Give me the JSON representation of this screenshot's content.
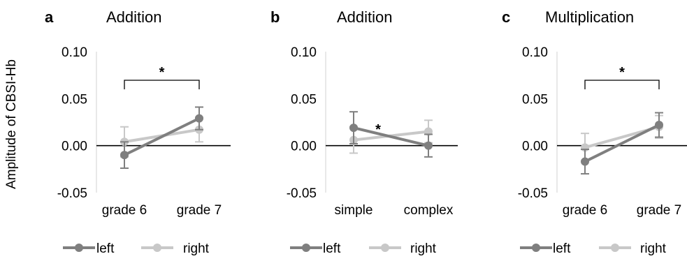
{
  "ylabel": "Amplitude of CBSI-Hb",
  "colors": {
    "left": "#7f7f7f",
    "right": "#c8c8c8",
    "axis": "#000000",
    "gridline": "#d9d9d9"
  },
  "chart_data": [
    {
      "type": "line",
      "letter": "a",
      "title": "Addition",
      "categories": [
        "grade 6",
        "grade 7"
      ],
      "ylim": [
        -0.05,
        0.1
      ],
      "yticks": [
        "0.10",
        "0.05",
        "0.00",
        "-0.05"
      ],
      "series": [
        {
          "name": "left",
          "values": [
            -0.01,
            0.029
          ],
          "errors": [
            0.014,
            0.012
          ]
        },
        {
          "name": "right",
          "values": [
            0.004,
            0.017
          ],
          "errors": [
            0.016,
            0.013
          ]
        }
      ],
      "bracket": {
        "label": "*",
        "between": [
          "grade 6",
          "grade 7"
        ]
      },
      "legend": [
        "left",
        "right"
      ]
    },
    {
      "type": "line",
      "letter": "b",
      "title": "Addition",
      "categories": [
        "simple",
        "complex"
      ],
      "ylim": [
        -0.05,
        0.1
      ],
      "yticks": [
        "0.10",
        "0.05",
        "0.00",
        "-0.05"
      ],
      "series": [
        {
          "name": "left",
          "values": [
            0.019,
            0.0
          ],
          "errors": [
            0.017,
            0.012
          ]
        },
        {
          "name": "right",
          "values": [
            0.006,
            0.015
          ],
          "errors": [
            0.014,
            0.012
          ]
        }
      ],
      "annotation": "*",
      "legend": [
        "left",
        "right"
      ]
    },
    {
      "type": "line",
      "letter": "c",
      "title": "Multiplication",
      "categories": [
        "grade 6",
        "grade 7"
      ],
      "ylim": [
        -0.05,
        0.1
      ],
      "yticks": [
        "0.10",
        "0.05",
        "0.00",
        "-0.05"
      ],
      "series": [
        {
          "name": "left",
          "values": [
            -0.017,
            0.022
          ],
          "errors": [
            0.013,
            0.013
          ]
        },
        {
          "name": "right",
          "values": [
            -0.002,
            0.02
          ],
          "errors": [
            0.015,
            0.012
          ]
        }
      ],
      "bracket": {
        "label": "*",
        "between": [
          "grade 6",
          "grade 7"
        ]
      },
      "legend": [
        "left",
        "right"
      ]
    }
  ]
}
